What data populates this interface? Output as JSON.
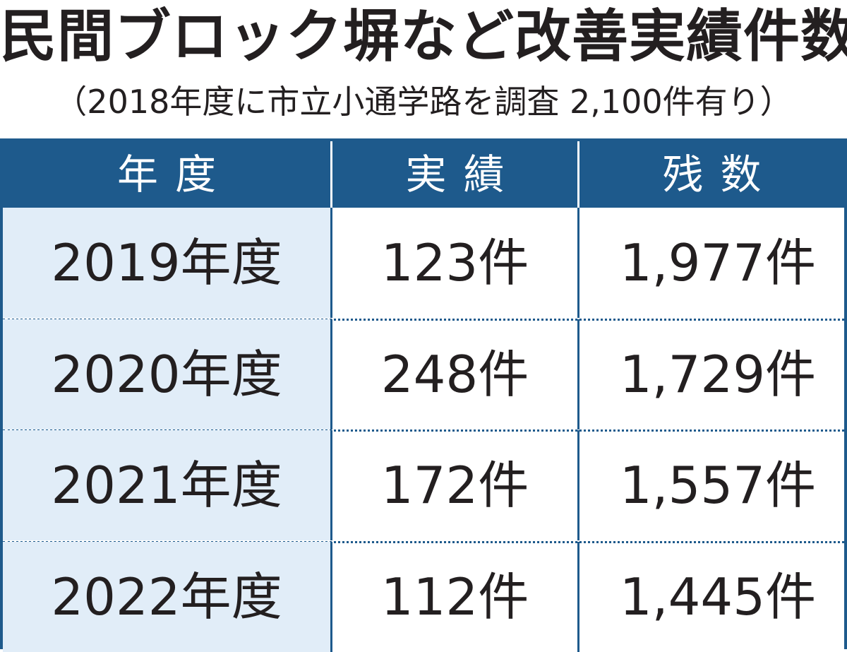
{
  "header": {
    "title": "民間ブロック塀など改善実績件数",
    "subtitle": "（2018年度に市立小通学路を調査 2,100件有り）"
  },
  "table": {
    "columns": [
      "年度",
      "実績",
      "残数"
    ],
    "rows": [
      [
        "2019年度",
        "123件",
        "1,977件"
      ],
      [
        "2020年度",
        "248件",
        "1,729件"
      ],
      [
        "2021年度",
        "172件",
        "1,557件"
      ],
      [
        "2022年度",
        "112件",
        "1,445件"
      ]
    ]
  }
}
